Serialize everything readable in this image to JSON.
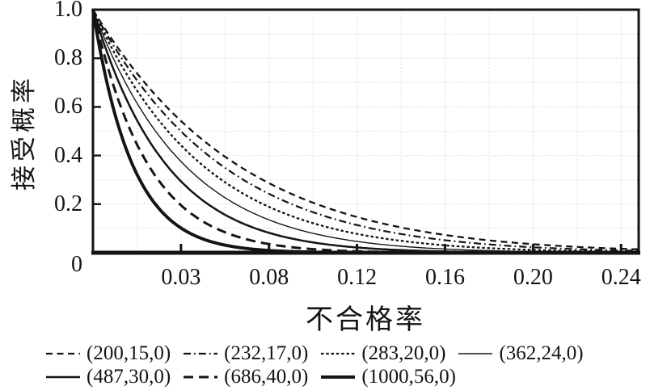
{
  "chart_data": {
    "type": "line",
    "title": "",
    "xlabel": "不合格率",
    "ylabel": "接受概率",
    "x_ticks": [
      "0.03",
      "0.08",
      "0.12",
      "0.16",
      "0.20",
      "0.24"
    ],
    "y_ticks": [
      "0",
      "0.2",
      "0.4",
      "0.6",
      "0.8",
      "1.0"
    ],
    "x_range": [
      0,
      0.248
    ],
    "y_range": [
      0,
      1.0
    ],
    "grid": "light dotted minor grid",
    "legend_position": "bottom",
    "curve_model": "OC curves of sampling plans (N,n,0): Pa(p) = (1-p)^n",
    "series": [
      {
        "label": "(200,15,0)",
        "n": 15,
        "line_style": "dashed",
        "dash": "8,5.5",
        "width": 2.3,
        "points_p": [
          0.02,
          0.05,
          0.1,
          0.15,
          0.2
        ],
        "points_pa": [
          0.739,
          0.463,
          0.206,
          0.087,
          0.035
        ]
      },
      {
        "label": "(232,17,0)",
        "n": 17,
        "line_style": "dash-dot",
        "dash": "9,4,1.8,4",
        "width": 2.2,
        "points_p": [
          0.02,
          0.05,
          0.1,
          0.15,
          0.2
        ],
        "points_pa": [
          0.709,
          0.418,
          0.167,
          0.063,
          0.023
        ]
      },
      {
        "label": "(283,20,0)",
        "n": 20,
        "line_style": "fine-dash",
        "dash": "3.5,2.8",
        "width": 2.3,
        "points_p": [
          0.02,
          0.05,
          0.1,
          0.15,
          0.2
        ],
        "points_pa": [
          0.668,
          0.358,
          0.122,
          0.039,
          0.012
        ]
      },
      {
        "label": "(362,24,0)",
        "n": 24,
        "line_style": "thin-solid",
        "dash": "",
        "width": 1.4,
        "points_p": [
          0.02,
          0.05,
          0.1,
          0.15,
          0.2
        ],
        "points_pa": [
          0.616,
          0.292,
          0.08,
          0.02,
          0.005
        ]
      },
      {
        "label": "(487,30,0)",
        "n": 30,
        "line_style": "solid",
        "dash": "",
        "width": 2.5,
        "points_p": [
          0.02,
          0.05,
          0.1,
          0.15,
          0.2
        ],
        "points_pa": [
          0.545,
          0.215,
          0.042,
          0.008,
          0.001
        ]
      },
      {
        "label": "(686,40,0)",
        "n": 40,
        "line_style": "long-dash",
        "dash": "12,7",
        "width": 3.0,
        "points_p": [
          0.02,
          0.05,
          0.1,
          0.15,
          0.2
        ],
        "points_pa": [
          0.446,
          0.129,
          0.015,
          0.002,
          0.0
        ]
      },
      {
        "label": "(1000,56,0)",
        "n": 56,
        "line_style": "thick-solid",
        "dash": "",
        "width": 3.9,
        "points_p": [
          0.02,
          0.05,
          0.1,
          0.15,
          0.2
        ],
        "points_pa": [
          0.323,
          0.057,
          0.003,
          0.0,
          0.0
        ]
      }
    ],
    "legend_rows": [
      [
        0,
        1,
        2,
        3
      ],
      [
        4,
        5,
        6
      ]
    ],
    "ink_color": "#141414",
    "grid_color": "#dcd8d0",
    "background": "#ffffff"
  }
}
